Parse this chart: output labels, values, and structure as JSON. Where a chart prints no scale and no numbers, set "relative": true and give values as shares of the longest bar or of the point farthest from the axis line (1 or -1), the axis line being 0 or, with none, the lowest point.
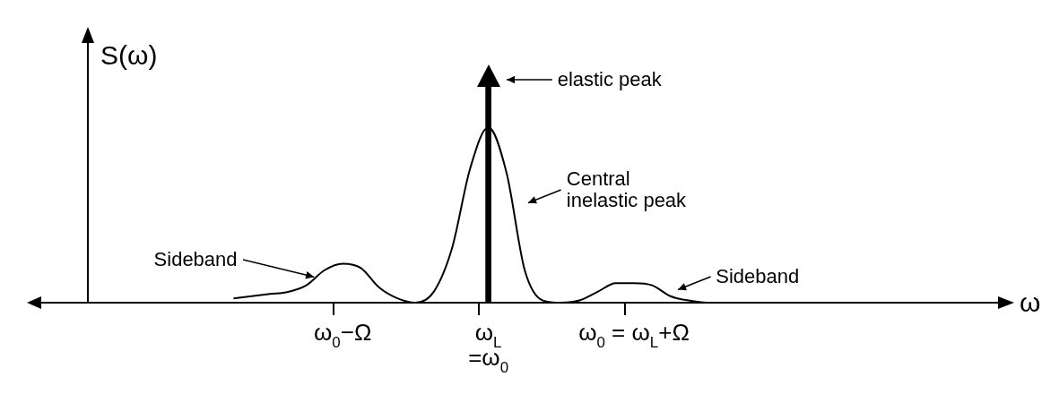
{
  "chart_data": {
    "type": "line",
    "relative": true,
    "xlabel": "ω",
    "ylabel": "S(ω)",
    "categories": [
      null,
      null,
      null,
      null,
      null,
      null,
      null,
      null,
      null,
      null,
      null,
      null,
      null,
      null,
      "ω$_{0}$−Ω",
      null,
      null,
      null,
      null,
      null,
      null,
      null,
      "ω$_{L}$\n=ω$_{0}$",
      null,
      null,
      null,
      null,
      null,
      null,
      null,
      "ω$_{0}$ = ω$_{L}$+Ω",
      null,
      null,
      null,
      null,
      null,
      null,
      null,
      null,
      null,
      null,
      null,
      null,
      null,
      null,
      null,
      null,
      null,
      null,
      null,
      null
    ],
    "series": [
      {
        "color": "#000000",
        "values": [
          null,
          null,
          null,
          null,
          null,
          null,
          null,
          null,
          0.02,
          0.03,
          0.04,
          0.05,
          0.08,
          0.15,
          0.18,
          0.16,
          0.07,
          0.02,
          0,
          0.05,
          0.25,
          0.62,
          0.81,
          0.6,
          0.15,
          0.01,
          0,
          0.01,
          0.05,
          0.09,
          0.09,
          0.08,
          0.03,
          0.01,
          0,
          0,
          0,
          null,
          null,
          null,
          null,
          null,
          null,
          null,
          null,
          null,
          null,
          null,
          null,
          null,
          null
        ]
      },
      {
        "type": "bar",
        "color": "#000000",
        "values": [
          null,
          null,
          null,
          null,
          null,
          null,
          null,
          null,
          null,
          null,
          null,
          null,
          null,
          null,
          null,
          null,
          null,
          null,
          null,
          null,
          null,
          null,
          1,
          null,
          null,
          null,
          null,
          null,
          null,
          null,
          null,
          null,
          null,
          null,
          null,
          null,
          null,
          null,
          null,
          null,
          null,
          null,
          null,
          null,
          null,
          null,
          null,
          null,
          null,
          null,
          null
        ]
      }
    ],
    "annotations": [
      "elastic peak",
      "Central\ninelastic peak",
      "Sideband",
      "Sideband"
    ]
  }
}
